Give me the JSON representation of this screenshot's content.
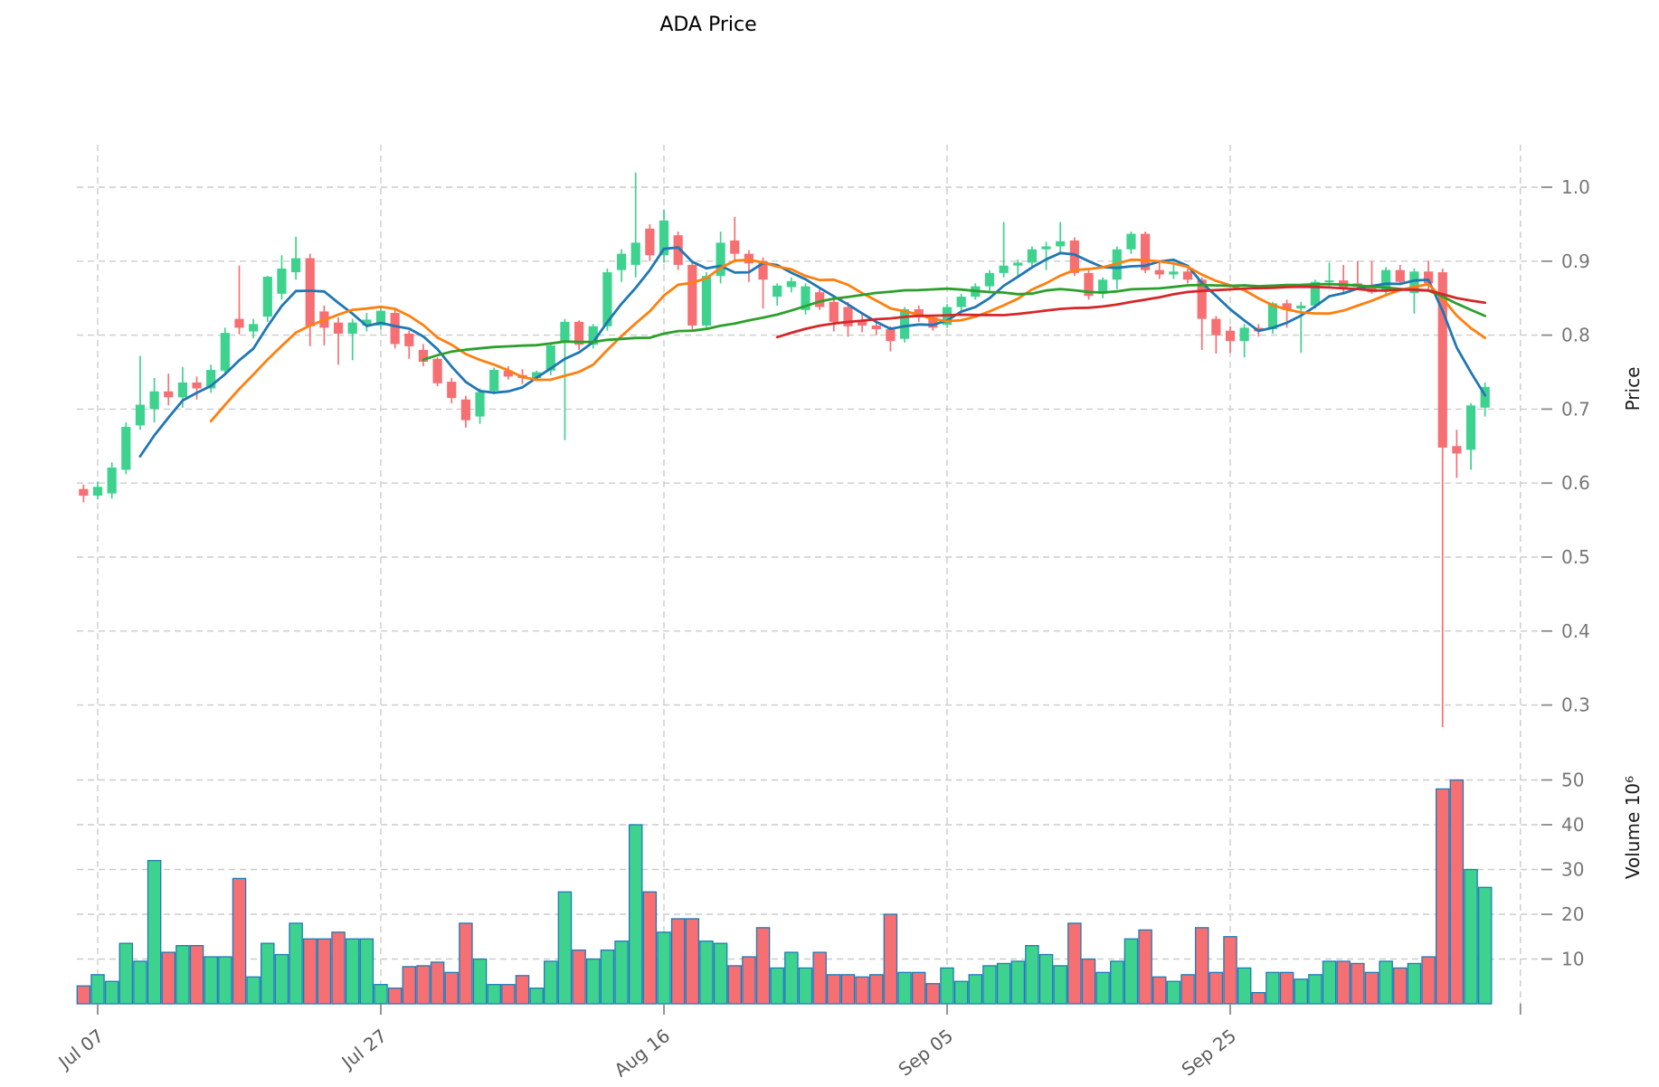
{
  "title": "ADA Price",
  "colors": {
    "up": "#3ED28F",
    "down": "#F66F73",
    "volume_edge": "#1E7AB8",
    "grid": "#cccccc",
    "tick_text": "#767676",
    "date_text": "#5c5c5c",
    "axis_text": "#1a1a1a",
    "ma_colors": [
      "#1f77b4",
      "#ff7f0e",
      "#2ca02c",
      "#d62728"
    ]
  },
  "chart_data": {
    "type": "candlestick",
    "title": "ADA Price",
    "price_axis": {
      "label": "Price",
      "ticks": [
        1.0,
        0.9,
        0.8,
        0.7,
        0.6,
        0.5,
        0.4,
        0.3
      ],
      "side": "right",
      "grid": "dashed"
    },
    "volume_axis": {
      "label": "Volume",
      "unit": "10⁶",
      "ticks": [
        50,
        40,
        30,
        20,
        10
      ],
      "side": "right",
      "grid": "dashed"
    },
    "x_ticks": [
      {
        "index": 1,
        "label": "Jul 07"
      },
      {
        "index": 21,
        "label": "Jul 27"
      },
      {
        "index": 41,
        "label": "Aug 16"
      },
      {
        "index": 61,
        "label": "Sep 05"
      },
      {
        "index": 81,
        "label": "Sep 25"
      },
      {
        "index": 101.5,
        "label": ""
      }
    ],
    "moving_averages": [
      {
        "window": 5,
        "color": "#1f77b4"
      },
      {
        "window": 10,
        "color": "#ff7f0e"
      },
      {
        "window": 25,
        "color": "#2ca02c"
      },
      {
        "window": 50,
        "color": "#d62728"
      }
    ],
    "candles": [
      {
        "date": "Jul 06",
        "o": 0.592,
        "h": 0.598,
        "l": 0.574,
        "c": 0.583,
        "v": 4.0
      },
      {
        "date": "Jul 07",
        "o": 0.583,
        "h": 0.602,
        "l": 0.578,
        "c": 0.595,
        "v": 6.5
      },
      {
        "date": "Jul 08",
        "o": 0.586,
        "h": 0.628,
        "l": 0.579,
        "c": 0.621,
        "v": 5.0
      },
      {
        "date": "Jul 09",
        "o": 0.618,
        "h": 0.682,
        "l": 0.612,
        "c": 0.676,
        "v": 13.5
      },
      {
        "date": "Jul 10",
        "o": 0.678,
        "h": 0.772,
        "l": 0.672,
        "c": 0.706,
        "v": 9.5
      },
      {
        "date": "Jul 11",
        "o": 0.7,
        "h": 0.742,
        "l": 0.682,
        "c": 0.724,
        "v": 32.0
      },
      {
        "date": "Jul 12",
        "o": 0.724,
        "h": 0.748,
        "l": 0.705,
        "c": 0.716,
        "v": 11.5
      },
      {
        "date": "Jul 13",
        "o": 0.716,
        "h": 0.757,
        "l": 0.702,
        "c": 0.736,
        "v": 13.0
      },
      {
        "date": "Jul 14",
        "o": 0.736,
        "h": 0.744,
        "l": 0.713,
        "c": 0.728,
        "v": 13.0
      },
      {
        "date": "Jul 15",
        "o": 0.728,
        "h": 0.76,
        "l": 0.722,
        "c": 0.753,
        "v": 10.5
      },
      {
        "date": "Jul 16",
        "o": 0.752,
        "h": 0.81,
        "l": 0.748,
        "c": 0.803,
        "v": 10.5
      },
      {
        "date": "Jul 17",
        "o": 0.822,
        "h": 0.894,
        "l": 0.801,
        "c": 0.81,
        "v": 28.0
      },
      {
        "date": "Jul 18",
        "o": 0.805,
        "h": 0.822,
        "l": 0.796,
        "c": 0.815,
        "v": 6.0
      },
      {
        "date": "Jul 19",
        "o": 0.825,
        "h": 0.88,
        "l": 0.818,
        "c": 0.879,
        "v": 13.5
      },
      {
        "date": "Jul 20",
        "o": 0.856,
        "h": 0.908,
        "l": 0.848,
        "c": 0.89,
        "v": 11.0
      },
      {
        "date": "Jul 21",
        "o": 0.885,
        "h": 0.933,
        "l": 0.875,
        "c": 0.904,
        "v": 18.0
      },
      {
        "date": "Jul 22",
        "o": 0.904,
        "h": 0.91,
        "l": 0.785,
        "c": 0.812,
        "v": 14.5
      },
      {
        "date": "Jul 23",
        "o": 0.832,
        "h": 0.84,
        "l": 0.786,
        "c": 0.81,
        "v": 14.5
      },
      {
        "date": "Jul 24",
        "o": 0.817,
        "h": 0.824,
        "l": 0.76,
        "c": 0.802,
        "v": 16.0
      },
      {
        "date": "Jul 25",
        "o": 0.802,
        "h": 0.822,
        "l": 0.766,
        "c": 0.817,
        "v": 14.5
      },
      {
        "date": "Jul 26",
        "o": 0.813,
        "h": 0.83,
        "l": 0.805,
        "c": 0.821,
        "v": 14.5
      },
      {
        "date": "Jul 27",
        "o": 0.813,
        "h": 0.838,
        "l": 0.808,
        "c": 0.833,
        "v": 4.3
      },
      {
        "date": "Jul 28",
        "o": 0.83,
        "h": 0.834,
        "l": 0.782,
        "c": 0.788,
        "v": 3.5
      },
      {
        "date": "Jul 29",
        "o": 0.802,
        "h": 0.806,
        "l": 0.768,
        "c": 0.785,
        "v": 8.3
      },
      {
        "date": "Jul 30",
        "o": 0.78,
        "h": 0.788,
        "l": 0.758,
        "c": 0.764,
        "v": 8.5
      },
      {
        "date": "Jul 31",
        "o": 0.768,
        "h": 0.77,
        "l": 0.731,
        "c": 0.735,
        "v": 9.3
      },
      {
        "date": "Aug 01",
        "o": 0.737,
        "h": 0.742,
        "l": 0.708,
        "c": 0.715,
        "v": 7.0
      },
      {
        "date": "Aug 02",
        "o": 0.713,
        "h": 0.718,
        "l": 0.675,
        "c": 0.685,
        "v": 18.0
      },
      {
        "date": "Aug 03",
        "o": 0.69,
        "h": 0.728,
        "l": 0.68,
        "c": 0.723,
        "v": 10.0
      },
      {
        "date": "Aug 04",
        "o": 0.725,
        "h": 0.756,
        "l": 0.72,
        "c": 0.753,
        "v": 4.3
      },
      {
        "date": "Aug 05",
        "o": 0.752,
        "h": 0.758,
        "l": 0.74,
        "c": 0.744,
        "v": 4.3
      },
      {
        "date": "Aug 06",
        "o": 0.746,
        "h": 0.754,
        "l": 0.734,
        "c": 0.742,
        "v": 6.3
      },
      {
        "date": "Aug 07",
        "o": 0.742,
        "h": 0.752,
        "l": 0.738,
        "c": 0.75,
        "v": 3.5
      },
      {
        "date": "Aug 08",
        "o": 0.752,
        "h": 0.79,
        "l": 0.746,
        "c": 0.786,
        "v": 9.5
      },
      {
        "date": "Aug 09",
        "o": 0.79,
        "h": 0.822,
        "l": 0.658,
        "c": 0.818,
        "v": 25.0
      },
      {
        "date": "Aug 10",
        "o": 0.818,
        "h": 0.82,
        "l": 0.78,
        "c": 0.787,
        "v": 12.0
      },
      {
        "date": "Aug 11",
        "o": 0.787,
        "h": 0.815,
        "l": 0.782,
        "c": 0.812,
        "v": 10.0
      },
      {
        "date": "Aug 12",
        "o": 0.812,
        "h": 0.89,
        "l": 0.806,
        "c": 0.885,
        "v": 12.0
      },
      {
        "date": "Aug 13",
        "o": 0.888,
        "h": 0.916,
        "l": 0.872,
        "c": 0.91,
        "v": 14.0
      },
      {
        "date": "Aug 14",
        "o": 0.895,
        "h": 1.02,
        "l": 0.878,
        "c": 0.925,
        "v": 40.0
      },
      {
        "date": "Aug 15",
        "o": 0.944,
        "h": 0.95,
        "l": 0.9,
        "c": 0.908,
        "v": 25.0
      },
      {
        "date": "Aug 16",
        "o": 0.908,
        "h": 0.97,
        "l": 0.898,
        "c": 0.955,
        "v": 16.0
      },
      {
        "date": "Aug 17",
        "o": 0.935,
        "h": 0.94,
        "l": 0.888,
        "c": 0.895,
        "v": 19.0
      },
      {
        "date": "Aug 18",
        "o": 0.895,
        "h": 0.9,
        "l": 0.808,
        "c": 0.813,
        "v": 19.0
      },
      {
        "date": "Aug 19",
        "o": 0.813,
        "h": 0.885,
        "l": 0.81,
        "c": 0.88,
        "v": 14.0
      },
      {
        "date": "Aug 20",
        "o": 0.88,
        "h": 0.94,
        "l": 0.87,
        "c": 0.925,
        "v": 13.5
      },
      {
        "date": "Aug 21",
        "o": 0.928,
        "h": 0.96,
        "l": 0.898,
        "c": 0.91,
        "v": 8.5
      },
      {
        "date": "Aug 22",
        "o": 0.91,
        "h": 0.915,
        "l": 0.872,
        "c": 0.897,
        "v": 10.5
      },
      {
        "date": "Aug 23",
        "o": 0.9,
        "h": 0.905,
        "l": 0.836,
        "c": 0.875,
        "v": 17.0
      },
      {
        "date": "Aug 24",
        "o": 0.852,
        "h": 0.87,
        "l": 0.84,
        "c": 0.867,
        "v": 8.0
      },
      {
        "date": "Aug 25",
        "o": 0.865,
        "h": 0.878,
        "l": 0.858,
        "c": 0.873,
        "v": 11.5
      },
      {
        "date": "Aug 26",
        "o": 0.834,
        "h": 0.87,
        "l": 0.828,
        "c": 0.866,
        "v": 8.0
      },
      {
        "date": "Aug 27",
        "o": 0.858,
        "h": 0.864,
        "l": 0.834,
        "c": 0.838,
        "v": 11.5
      },
      {
        "date": "Aug 28",
        "o": 0.845,
        "h": 0.852,
        "l": 0.805,
        "c": 0.818,
        "v": 6.5
      },
      {
        "date": "Aug 29",
        "o": 0.838,
        "h": 0.845,
        "l": 0.798,
        "c": 0.812,
        "v": 6.5
      },
      {
        "date": "Aug 30",
        "o": 0.819,
        "h": 0.831,
        "l": 0.804,
        "c": 0.813,
        "v": 6.0
      },
      {
        "date": "Aug 31",
        "o": 0.813,
        "h": 0.82,
        "l": 0.8,
        "c": 0.808,
        "v": 6.5
      },
      {
        "date": "Sep 01",
        "o": 0.808,
        "h": 0.812,
        "l": 0.778,
        "c": 0.792,
        "v": 20.0
      },
      {
        "date": "Sep 02",
        "o": 0.795,
        "h": 0.838,
        "l": 0.79,
        "c": 0.835,
        "v": 7.0
      },
      {
        "date": "Sep 03",
        "o": 0.835,
        "h": 0.84,
        "l": 0.818,
        "c": 0.824,
        "v": 7.0
      },
      {
        "date": "Sep 04",
        "o": 0.824,
        "h": 0.828,
        "l": 0.806,
        "c": 0.81,
        "v": 4.5
      },
      {
        "date": "Sep 05",
        "o": 0.814,
        "h": 0.842,
        "l": 0.81,
        "c": 0.838,
        "v": 8.0
      },
      {
        "date": "Sep 06",
        "o": 0.838,
        "h": 0.856,
        "l": 0.832,
        "c": 0.852,
        "v": 5.0
      },
      {
        "date": "Sep 07",
        "o": 0.852,
        "h": 0.87,
        "l": 0.848,
        "c": 0.866,
        "v": 6.5
      },
      {
        "date": "Sep 08",
        "o": 0.866,
        "h": 0.888,
        "l": 0.86,
        "c": 0.884,
        "v": 8.5
      },
      {
        "date": "Sep 09",
        "o": 0.884,
        "h": 0.953,
        "l": 0.878,
        "c": 0.894,
        "v": 9.0
      },
      {
        "date": "Sep 10",
        "o": 0.894,
        "h": 0.902,
        "l": 0.88,
        "c": 0.898,
        "v": 9.5
      },
      {
        "date": "Sep 11",
        "o": 0.898,
        "h": 0.92,
        "l": 0.89,
        "c": 0.916,
        "v": 13.0
      },
      {
        "date": "Sep 12",
        "o": 0.916,
        "h": 0.926,
        "l": 0.888,
        "c": 0.92,
        "v": 11.0
      },
      {
        "date": "Sep 13",
        "o": 0.92,
        "h": 0.953,
        "l": 0.912,
        "c": 0.927,
        "v": 8.5
      },
      {
        "date": "Sep 14",
        "o": 0.928,
        "h": 0.932,
        "l": 0.88,
        "c": 0.884,
        "v": 18.0
      },
      {
        "date": "Sep 15",
        "o": 0.884,
        "h": 0.888,
        "l": 0.848,
        "c": 0.853,
        "v": 10.0
      },
      {
        "date": "Sep 16",
        "o": 0.856,
        "h": 0.878,
        "l": 0.85,
        "c": 0.875,
        "v": 7.0
      },
      {
        "date": "Sep 17",
        "o": 0.875,
        "h": 0.92,
        "l": 0.862,
        "c": 0.916,
        "v": 9.5
      },
      {
        "date": "Sep 18",
        "o": 0.916,
        "h": 0.94,
        "l": 0.91,
        "c": 0.937,
        "v": 14.5
      },
      {
        "date": "Sep 19",
        "o": 0.937,
        "h": 0.94,
        "l": 0.884,
        "c": 0.888,
        "v": 16.5
      },
      {
        "date": "Sep 20",
        "o": 0.888,
        "h": 0.9,
        "l": 0.876,
        "c": 0.882,
        "v": 6.0
      },
      {
        "date": "Sep 21",
        "o": 0.882,
        "h": 0.902,
        "l": 0.876,
        "c": 0.886,
        "v": 5.0
      },
      {
        "date": "Sep 22",
        "o": 0.886,
        "h": 0.89,
        "l": 0.87,
        "c": 0.875,
        "v": 6.5
      },
      {
        "date": "Sep 23",
        "o": 0.875,
        "h": 0.878,
        "l": 0.78,
        "c": 0.822,
        "v": 17.0
      },
      {
        "date": "Sep 24",
        "o": 0.822,
        "h": 0.826,
        "l": 0.775,
        "c": 0.8,
        "v": 7.0
      },
      {
        "date": "Sep 25",
        "o": 0.806,
        "h": 0.812,
        "l": 0.776,
        "c": 0.792,
        "v": 15.0
      },
      {
        "date": "Sep 26",
        "o": 0.792,
        "h": 0.815,
        "l": 0.77,
        "c": 0.81,
        "v": 8.0
      },
      {
        "date": "Sep 27",
        "o": 0.81,
        "h": 0.815,
        "l": 0.798,
        "c": 0.805,
        "v": 2.5
      },
      {
        "date": "Sep 28",
        "o": 0.808,
        "h": 0.845,
        "l": 0.802,
        "c": 0.843,
        "v": 7.0
      },
      {
        "date": "Sep 29",
        "o": 0.843,
        "h": 0.848,
        "l": 0.81,
        "c": 0.834,
        "v": 7.0
      },
      {
        "date": "Sep 30",
        "o": 0.836,
        "h": 0.845,
        "l": 0.776,
        "c": 0.84,
        "v": 5.5
      },
      {
        "date": "Oct 01",
        "o": 0.84,
        "h": 0.875,
        "l": 0.836,
        "c": 0.872,
        "v": 6.5
      },
      {
        "date": "Oct 02",
        "o": 0.872,
        "h": 0.898,
        "l": 0.866,
        "c": 0.874,
        "v": 9.5
      },
      {
        "date": "Oct 03",
        "o": 0.874,
        "h": 0.895,
        "l": 0.858,
        "c": 0.863,
        "v": 9.5
      },
      {
        "date": "Oct 04",
        "o": 0.87,
        "h": 0.9,
        "l": 0.862,
        "c": 0.865,
        "v": 9.0
      },
      {
        "date": "Oct 05",
        "o": 0.868,
        "h": 0.9,
        "l": 0.856,
        "c": 0.858,
        "v": 7.0
      },
      {
        "date": "Oct 06",
        "o": 0.86,
        "h": 0.892,
        "l": 0.855,
        "c": 0.888,
        "v": 9.5
      },
      {
        "date": "Oct 07",
        "o": 0.888,
        "h": 0.895,
        "l": 0.868,
        "c": 0.872,
        "v": 8.0
      },
      {
        "date": "Oct 08",
        "o": 0.857,
        "h": 0.89,
        "l": 0.829,
        "c": 0.886,
        "v": 9.0
      },
      {
        "date": "Oct 09",
        "o": 0.886,
        "h": 0.9,
        "l": 0.86,
        "c": 0.87,
        "v": 10.5
      },
      {
        "date": "Oct 10",
        "o": 0.885,
        "h": 0.89,
        "l": 0.27,
        "c": 0.648,
        "v": 48.0
      },
      {
        "date": "Oct 11",
        "o": 0.65,
        "h": 0.672,
        "l": 0.607,
        "c": 0.64,
        "v": 50.0
      },
      {
        "date": "Oct 12",
        "o": 0.645,
        "h": 0.708,
        "l": 0.618,
        "c": 0.705,
        "v": 30.0
      },
      {
        "date": "Oct 13",
        "o": 0.702,
        "h": 0.736,
        "l": 0.69,
        "c": 0.73,
        "v": 26.0
      }
    ]
  }
}
